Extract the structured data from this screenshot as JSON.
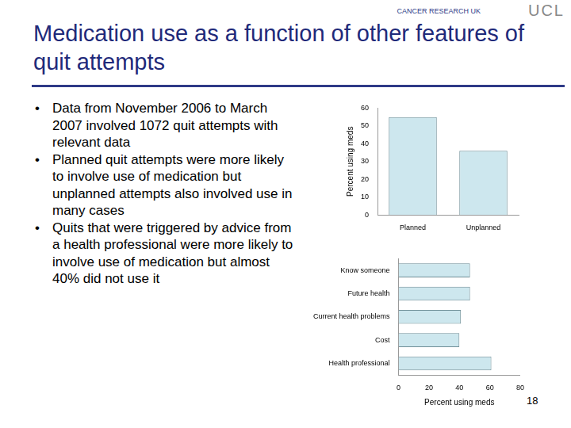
{
  "title": "Medication use as a function of other features of quit attempts",
  "logos": [
    "CANCER RESEARCH UK",
    "UCL"
  ],
  "bullets": [
    "Data from November 2006 to March 2007 involved 1072 quit attempts with relevant data",
    "Planned quit attempts were more likely to involve use of medication but unplanned attempts also involved use in many cases",
    "Quits that were triggered by advice from a health professional were more likely to involve use of medication but almost 40% did not use it"
  ],
  "page_number": "18",
  "chart_data": [
    {
      "type": "bar",
      "ylabel": "Percent using meds",
      "categories": [
        "Planned",
        "Unplanned"
      ],
      "values": [
        55,
        36
      ],
      "color": "#cde7ee",
      "ylim": [
        0,
        60
      ],
      "yticks": [
        0,
        10,
        20,
        30,
        40,
        50,
        60
      ],
      "grid": false
    },
    {
      "type": "bar",
      "orientation": "horizontal",
      "xlabel": "Percent using meds",
      "categories": [
        "Know someone",
        "Future health",
        "Current health problems",
        "Cost",
        "Health professional"
      ],
      "values": [
        47,
        47,
        41,
        40,
        61
      ],
      "color": "#cde7ee",
      "xlim": [
        0,
        80
      ],
      "xticks": [
        0,
        20,
        40,
        60,
        80
      ],
      "grid": false
    }
  ]
}
